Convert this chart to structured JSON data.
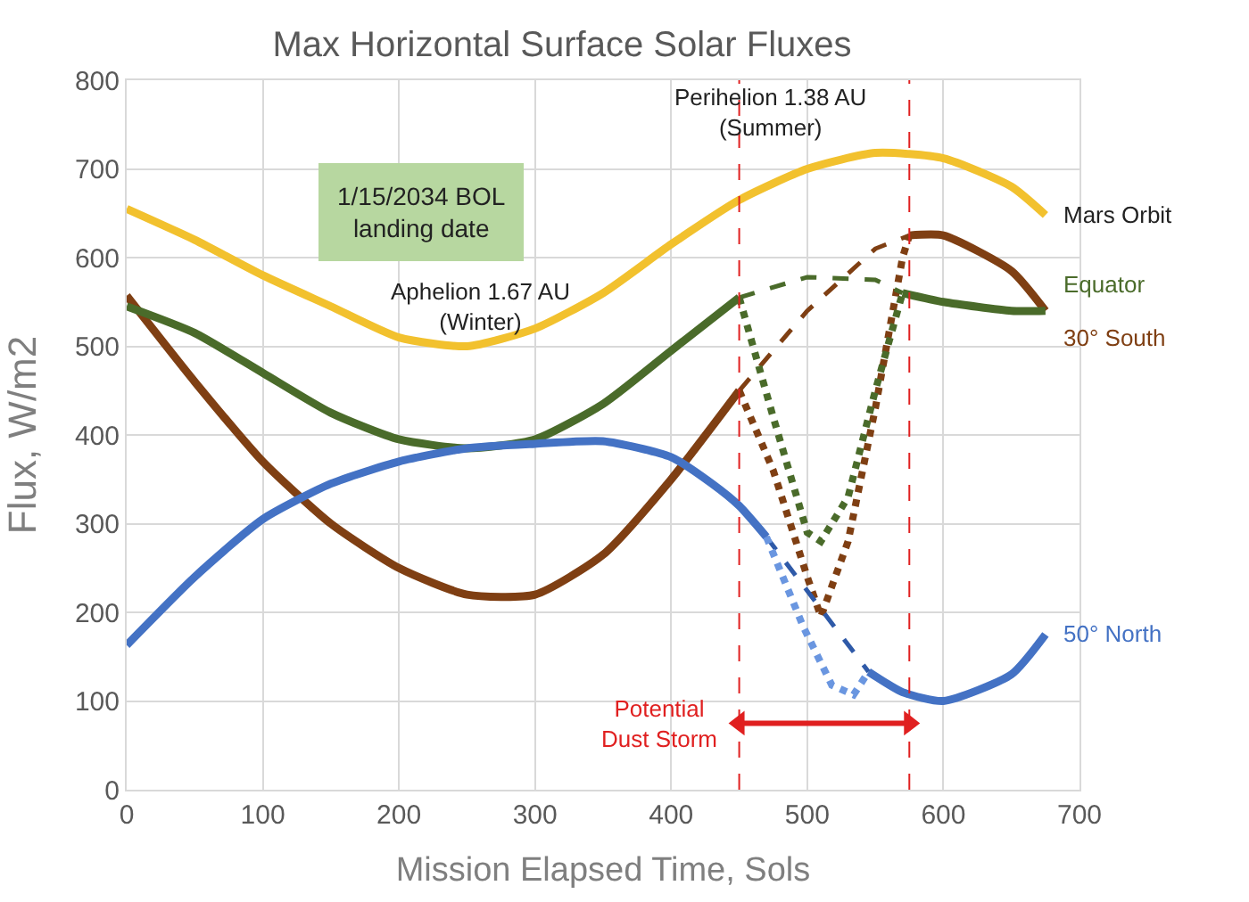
{
  "chart_data": {
    "type": "line",
    "title": "Max Horizontal Surface Solar Fluxes",
    "xlabel": "Mission Elapsed Time, Sols",
    "ylabel": "Flux, W/m2",
    "xlim": [
      0,
      700
    ],
    "xticks": [
      0,
      100,
      200,
      300,
      400,
      500,
      600,
      700
    ],
    "ylim": [
      0,
      800
    ],
    "yticks": [
      0,
      100,
      200,
      300,
      400,
      500,
      600,
      700,
      800
    ],
    "grid": true,
    "marker": "none",
    "series": [
      {
        "name": "Mars Orbit",
        "color": "#f2c12e",
        "line_style": "solid",
        "x": [
          0,
          50,
          100,
          150,
          200,
          250,
          300,
          350,
          400,
          450,
          500,
          550,
          600,
          650,
          675
        ],
        "values": [
          655,
          620,
          580,
          545,
          510,
          500,
          520,
          560,
          615,
          665,
          700,
          718,
          712,
          680,
          648
        ]
      },
      {
        "name": "30° South",
        "color": "#7f3f13",
        "line_style": "solid",
        "x": [
          0,
          50,
          100,
          150,
          200,
          250,
          300,
          350,
          400,
          450,
          null,
          575,
          600,
          650,
          675
        ],
        "values": [
          557,
          460,
          370,
          300,
          250,
          220,
          220,
          265,
          350,
          450,
          null,
          625,
          625,
          585,
          540
        ]
      },
      {
        "color": "#7f3f13",
        "line_style": "dashed",
        "x": [
          450,
          500,
          550,
          575
        ],
        "values": [
          450,
          540,
          610,
          625
        ]
      },
      {
        "color": "#7f3f13",
        "line_style": "dotted",
        "x": [
          450,
          475,
          500,
          510,
          530,
          550,
          570,
          575
        ],
        "values": [
          450,
          360,
          240,
          195,
          280,
          430,
          600,
          625
        ]
      },
      {
        "name": "Equator",
        "color": "#4a6b2a",
        "line_style": "solid",
        "x": [
          0,
          50,
          100,
          150,
          200,
          250,
          300,
          350,
          400,
          450,
          null,
          570,
          600,
          650,
          675
        ],
        "values": [
          545,
          515,
          470,
          425,
          395,
          385,
          395,
          435,
          495,
          555,
          null,
          560,
          550,
          540,
          540
        ]
      },
      {
        "color": "#4a6b2a",
        "line_style": "dashed",
        "x": [
          450,
          500,
          550,
          570
        ],
        "values": [
          555,
          578,
          575,
          560
        ]
      },
      {
        "color": "#4a6b2a",
        "line_style": "dotted",
        "x": [
          450,
          475,
          500,
          510,
          530,
          550,
          570
        ],
        "values": [
          555,
          420,
          290,
          280,
          330,
          450,
          560
        ]
      },
      {
        "name": "50° North",
        "color": "#4472c4",
        "line_style": "solid",
        "x": [
          0,
          50,
          100,
          150,
          200,
          250,
          300,
          350,
          400,
          430,
          450,
          470,
          null,
          545,
          570,
          600,
          650,
          675
        ],
        "values": [
          163,
          240,
          305,
          345,
          370,
          385,
          390,
          393,
          375,
          345,
          320,
          285,
          null,
          133,
          110,
          100,
          130,
          175
        ]
      },
      {
        "color": "#2f5aa8",
        "line_style": "dashed",
        "x": [
          470,
          545
        ],
        "values": [
          285,
          133
        ]
      },
      {
        "color": "#6a96e0",
        "line_style": "dotted",
        "x": [
          470,
          497,
          518,
          534,
          545
        ],
        "values": [
          285,
          184,
          118,
          107,
          133
        ]
      },
      {
        "color": "#e02020",
        "line_style": "solid",
        "marker": "triangle",
        "x": [
          450,
          575
        ],
        "values": [
          75,
          75
        ]
      }
    ],
    "ref_lines": [
      {
        "axis": "x",
        "value": 450,
        "color": "#e02020",
        "line_style": "dashed"
      },
      {
        "axis": "x",
        "value": 575,
        "color": "#e02020",
        "line_style": "dashed"
      }
    ],
    "annotations": [
      "1/15/2034 BOL\nlanding date",
      "Aphelion 1.67 AU\n(Winter)",
      "Perihelion 1.38 AU\n(Summer)",
      {
        "text": "Potential\nDust Storm",
        "x": 450,
        "y": 75
      }
    ]
  }
}
